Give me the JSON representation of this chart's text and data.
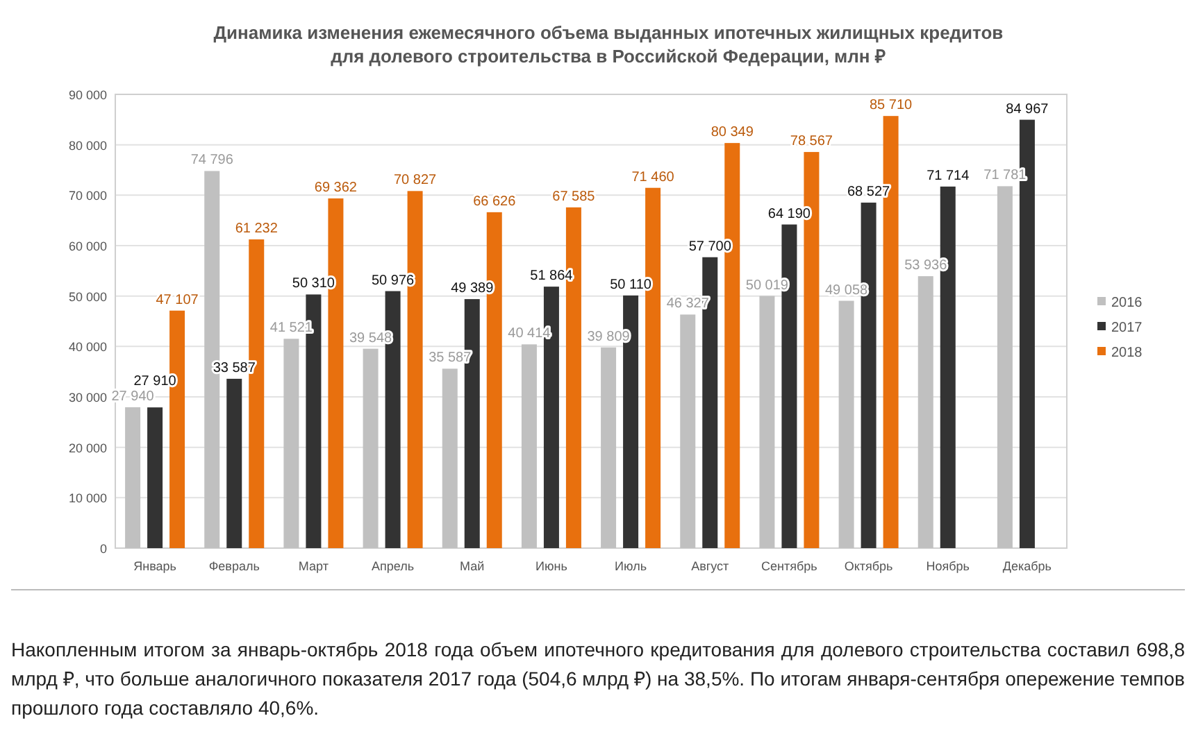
{
  "chart_data": {
    "type": "bar",
    "title": "Динамика изменения ежемесячного объема выданных ипотечных жилищных кредитов\nдля долевого строительства  в Российской Федерации, млн ₽",
    "categories": [
      "Январь",
      "Февраль",
      "Март",
      "Апрель",
      "Май",
      "Июнь",
      "Июль",
      "Август",
      "Сентябрь",
      "Октябрь",
      "Ноябрь",
      "Декабрь"
    ],
    "series": [
      {
        "name": "2016",
        "color": "#c0c0c0",
        "values": [
          27940,
          74796,
          41521,
          39548,
          35587,
          40414,
          39809,
          46327,
          50019,
          49058,
          53936,
          71781
        ]
      },
      {
        "name": "2017",
        "color": "#333333",
        "values": [
          27910,
          33587,
          50310,
          50976,
          49389,
          51864,
          50110,
          57700,
          64190,
          68527,
          71714,
          84967
        ]
      },
      {
        "name": "2018",
        "color": "#e8700e",
        "values": [
          47107,
          61232,
          69362,
          70827,
          66626,
          67585,
          71460,
          80349,
          78567,
          85710,
          null,
          null
        ]
      }
    ],
    "ylim": [
      0,
      90000
    ],
    "yticks": [
      0,
      {
        "value": 10000,
        "label": "10 000"
      },
      {
        "value": 20000,
        "label": "20 000"
      },
      {
        "value": 30000,
        "label": "30 000"
      },
      {
        "value": 40000,
        "label": "40 000"
      },
      {
        "value": 50000,
        "label": "50 000"
      },
      {
        "value": 60000,
        "label": "60 000"
      },
      {
        "value": 70000,
        "label": "70 000"
      },
      {
        "value": 80000,
        "label": "80 000"
      },
      {
        "value": 90000,
        "label": "90 000"
      }
    ],
    "grid": "y",
    "legend": "right",
    "data_labels": true,
    "annotations": [
      "Накопленным итогом за январь-октябрь 2018 года объем ипотечного кредитования для долевого строительства составил 698,8 млрд ₽, что больше аналогичного показателя 2017 года (504,6 млрд ₽) на 38,5%. По итогам января-сентября опережение темпов прошлого года составляло 40,6%."
    ]
  }
}
